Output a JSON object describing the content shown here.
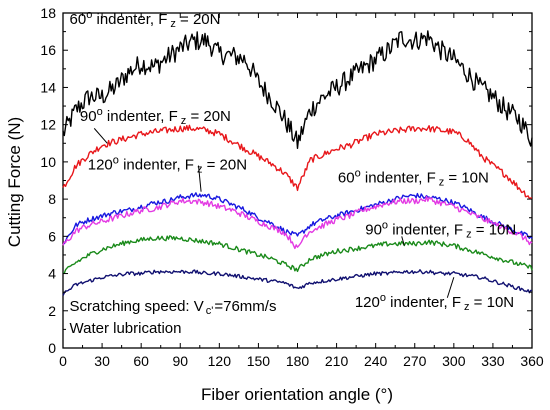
{
  "chart_data": {
    "type": "line",
    "title": "",
    "xlabel": "Fiber orientation angle (°)",
    "ylabel": "Cutting Force (N)",
    "xlim": [
      0,
      360
    ],
    "ylim": [
      0,
      18
    ],
    "xticks": [
      "0",
      "30",
      "60",
      "90",
      "120",
      "150",
      "180",
      "210",
      "240",
      "270",
      "300",
      "330",
      "360"
    ],
    "yticks": [
      "0",
      "2",
      "4",
      "6",
      "8",
      "10",
      "12",
      "14",
      "16",
      "18"
    ],
    "grid": false,
    "legend": "none (inline annotations)",
    "annotations": {
      "speed": "Scratching speed: V",
      "speed_sub": "c'",
      "speed_value": "=76mm/s",
      "lubrication": "Water lubrication"
    },
    "series": [
      {
        "name": "60° indenter, Fz = 20N",
        "color": "#000000",
        "x": [
          0,
          10,
          20,
          30,
          40,
          50,
          60,
          70,
          80,
          90,
          100,
          110,
          120,
          130,
          140,
          150,
          160,
          170,
          180,
          190,
          200,
          210,
          220,
          230,
          240,
          250,
          260,
          270,
          280,
          290,
          300,
          310,
          320,
          330,
          340,
          350,
          360
        ],
        "y": [
          11.5,
          12.8,
          13.5,
          13.5,
          14.0,
          14.8,
          15.3,
          15.1,
          15.6,
          16.1,
          16.5,
          16.5,
          15.8,
          15.7,
          15.5,
          14.3,
          13.4,
          12.3,
          11.0,
          12.8,
          13.5,
          14.0,
          14.5,
          15.0,
          15.5,
          16.0,
          16.7,
          16.5,
          16.7,
          16.0,
          15.5,
          14.8,
          14.0,
          13.5,
          12.8,
          12.3,
          11.2
        ],
        "labels": {
          "prefix": "60",
          "deg": "o",
          "mid": " indenter, F",
          "sub": "z",
          "suffix": " = 20N"
        },
        "label_pos": {
          "x": 5,
          "y": 17.4
        }
      },
      {
        "name": "90° indenter, Fz = 20N",
        "color": "#e8171b",
        "x": [
          0,
          10,
          20,
          30,
          40,
          50,
          60,
          70,
          80,
          90,
          100,
          110,
          120,
          130,
          140,
          150,
          160,
          170,
          180,
          190,
          200,
          210,
          220,
          230,
          240,
          250,
          260,
          270,
          280,
          290,
          300,
          310,
          320,
          330,
          340,
          350,
          360
        ],
        "y": [
          8.6,
          9.8,
          10.4,
          10.9,
          11.1,
          11.3,
          11.5,
          11.6,
          11.7,
          11.8,
          11.8,
          11.7,
          11.5,
          11.1,
          10.7,
          10.3,
          9.9,
          9.4,
          8.6,
          10.1,
          10.4,
          10.7,
          10.9,
          11.2,
          11.5,
          11.6,
          11.7,
          11.8,
          11.8,
          11.7,
          11.6,
          11.2,
          10.4,
          9.8,
          9.3,
          8.6,
          8.0
        ],
        "labels": {
          "prefix": "90",
          "deg": "o",
          "mid": " indenter, F",
          "sub": "z",
          "suffix": " = 20N"
        },
        "label_pos": {
          "x": 13,
          "y": 12.2
        }
      },
      {
        "name": "120° indenter, Fz = 20N",
        "color": "#1717e0",
        "x": [
          0,
          10,
          20,
          30,
          40,
          50,
          60,
          70,
          80,
          90,
          100,
          110,
          120,
          130,
          140,
          150,
          160,
          170,
          180,
          190,
          200,
          210,
          220,
          230,
          240,
          250,
          260,
          270,
          280,
          290,
          300,
          310,
          320,
          330,
          340,
          350,
          360
        ],
        "y": [
          5.6,
          6.6,
          6.9,
          7.1,
          7.3,
          7.4,
          7.6,
          7.8,
          7.9,
          8.1,
          8.2,
          8.2,
          8.0,
          7.7,
          7.4,
          7.0,
          6.7,
          6.3,
          6.0,
          6.6,
          6.9,
          7.1,
          7.3,
          7.5,
          7.7,
          7.9,
          8.1,
          8.2,
          8.1,
          8.0,
          7.8,
          7.5,
          7.1,
          6.8,
          6.5,
          6.2,
          5.9
        ],
        "labels": {
          "prefix": "120",
          "deg": "o",
          "mid": " indenter, F",
          "sub": "z",
          "suffix": " = 20N"
        },
        "label_pos": {
          "x": 19,
          "y": 9.6
        }
      },
      {
        "name": "60° indenter, Fz = 10N",
        "color": "#e33ae3",
        "x": [
          0,
          10,
          20,
          30,
          40,
          50,
          60,
          70,
          80,
          90,
          100,
          110,
          120,
          130,
          140,
          150,
          160,
          170,
          175,
          180,
          185,
          190,
          200,
          210,
          220,
          230,
          240,
          250,
          260,
          270,
          280,
          290,
          300,
          310,
          320,
          330,
          340,
          350,
          360
        ],
        "y": [
          5.5,
          6.3,
          6.6,
          6.8,
          7.0,
          7.2,
          7.4,
          7.5,
          7.7,
          7.9,
          7.9,
          7.8,
          7.6,
          7.4,
          7.1,
          6.8,
          6.5,
          6.2,
          5.8,
          5.3,
          6.0,
          6.3,
          6.6,
          6.9,
          7.1,
          7.4,
          7.6,
          7.8,
          7.9,
          7.9,
          8.0,
          7.8,
          7.6,
          7.3,
          7.0,
          6.7,
          6.4,
          6.1,
          5.6
        ],
        "labels": {
          "prefix": "60",
          "deg": "o",
          "mid": " indenter, F",
          "sub": "z",
          "suffix": " = 10N"
        },
        "label_pos": {
          "x": 211,
          "y": 8.9
        }
      },
      {
        "name": "90° indenter, Fz = 10N",
        "color": "#1a8a1a",
        "x": [
          0,
          10,
          20,
          30,
          40,
          50,
          60,
          70,
          80,
          90,
          100,
          110,
          120,
          130,
          140,
          150,
          160,
          170,
          180,
          190,
          200,
          210,
          220,
          230,
          240,
          250,
          260,
          270,
          280,
          290,
          300,
          310,
          320,
          330,
          340,
          350,
          360
        ],
        "y": [
          4.0,
          4.6,
          5.0,
          5.3,
          5.5,
          5.7,
          5.8,
          5.9,
          5.9,
          5.9,
          5.8,
          5.7,
          5.6,
          5.4,
          5.2,
          5.0,
          4.8,
          4.5,
          4.2,
          4.8,
          5.0,
          5.2,
          5.3,
          5.4,
          5.5,
          5.6,
          5.6,
          5.6,
          5.7,
          5.6,
          5.5,
          5.3,
          5.1,
          4.9,
          4.7,
          4.5,
          4.3
        ],
        "labels": {
          "prefix": "90",
          "deg": "o",
          "mid": " indenter, F",
          "sub": "z",
          "suffix": " = 10N"
        },
        "label_pos": {
          "x": 232,
          "y": 6.1
        }
      },
      {
        "name": "120° indenter, Fz = 10N",
        "color": "#101070",
        "x": [
          0,
          10,
          20,
          30,
          40,
          50,
          60,
          70,
          80,
          90,
          100,
          110,
          120,
          130,
          140,
          150,
          160,
          170,
          180,
          190,
          200,
          210,
          220,
          230,
          240,
          250,
          260,
          270,
          280,
          290,
          300,
          310,
          320,
          330,
          340,
          350,
          360
        ],
        "y": [
          2.9,
          3.4,
          3.6,
          3.8,
          3.9,
          4.0,
          4.0,
          4.1,
          4.1,
          4.1,
          4.1,
          4.0,
          4.0,
          3.9,
          3.8,
          3.7,
          3.6,
          3.5,
          3.2,
          3.5,
          3.6,
          3.7,
          3.8,
          3.9,
          4.0,
          4.0,
          4.1,
          4.1,
          4.1,
          4.0,
          4.0,
          3.9,
          3.8,
          3.6,
          3.4,
          3.2,
          3.0
        ],
        "labels": {
          "prefix": "120",
          "deg": "o",
          "mid": " indenter, F",
          "sub": "z",
          "suffix": " = 10N"
        },
        "label_pos": {
          "x": 224,
          "y": 2.2
        }
      }
    ]
  }
}
